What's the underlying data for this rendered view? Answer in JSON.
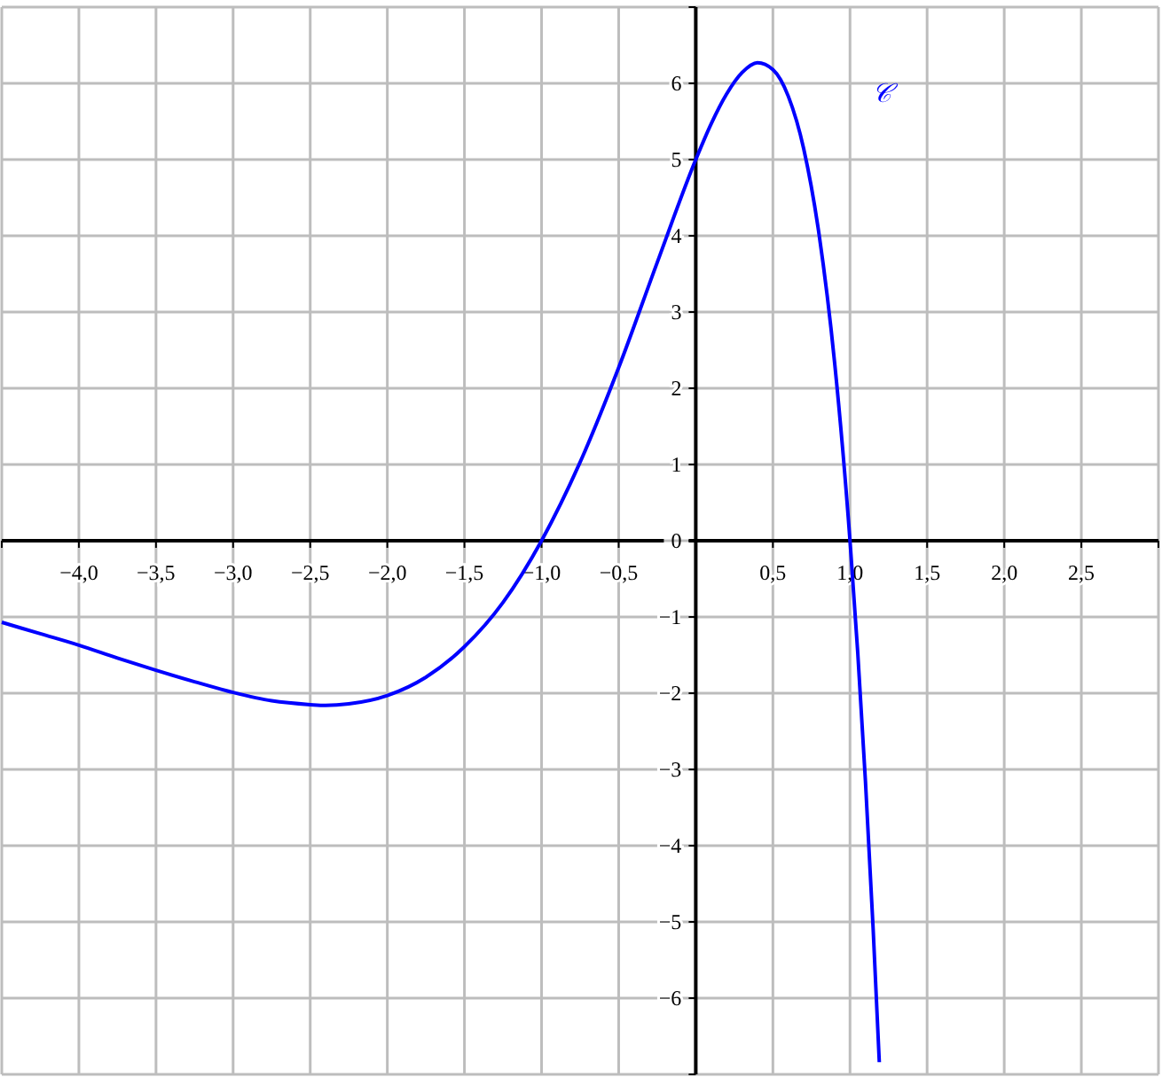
{
  "chart_data": {
    "type": "line",
    "x": [
      -4.5,
      -4.25,
      -4.0,
      -3.75,
      -3.5,
      -3.25,
      -3.0,
      -2.75,
      -2.5,
      -2.4,
      -2.25,
      -2.0,
      -1.75,
      -1.5,
      -1.25,
      -1.0,
      -0.75,
      -0.5,
      -0.25,
      0,
      0.1,
      0.2,
      0.3,
      0.4,
      0.5,
      0.6,
      0.7,
      0.8,
      0.9,
      1.0,
      1.05,
      1.1,
      1.15,
      1.19
    ],
    "series": [
      {
        "name": "𝒞",
        "color": "#0000ff",
        "values": [
          -1.07,
          -1.22,
          -1.37,
          -1.54,
          -1.7,
          -1.85,
          -1.99,
          -2.1,
          -2.15,
          -2.16,
          -2.14,
          -2.03,
          -1.79,
          -1.39,
          -0.81,
          0,
          1.03,
          2.27,
          3.65,
          5,
          5.47,
          5.86,
          6.14,
          6.27,
          6.18,
          5.83,
          5.14,
          4.01,
          2.34,
          0,
          -1.46,
          -3.15,
          -5.09,
          -6.84
        ]
      }
    ],
    "xlim": [
      -4.5,
      3
    ],
    "ylim": [
      -7,
      7
    ],
    "xticks": [
      {
        "value": -4.5,
        "label": null
      },
      {
        "value": -4,
        "label": "−4,0"
      },
      {
        "value": -3.5,
        "label": "−3,5"
      },
      {
        "value": -3,
        "label": "−3,0"
      },
      {
        "value": -2.5,
        "label": "−2,5"
      },
      {
        "value": -2,
        "label": "−2,0"
      },
      {
        "value": -1.5,
        "label": "−1,5"
      },
      {
        "value": -1,
        "label": "−1,0"
      },
      {
        "value": -0.5,
        "label": "−0,5"
      },
      {
        "value": 0,
        "label": null
      },
      {
        "value": 0.5,
        "label": "0,5"
      },
      {
        "value": 1,
        "label": "1,0"
      },
      {
        "value": 1.5,
        "label": "1,5"
      },
      {
        "value": 2,
        "label": "2,0"
      },
      {
        "value": 2.5,
        "label": "2,5"
      },
      {
        "value": 3,
        "label": null
      }
    ],
    "yticks": [
      {
        "value": -7,
        "label": null
      },
      {
        "value": -6,
        "label": "−6"
      },
      {
        "value": -5,
        "label": "−5"
      },
      {
        "value": -4,
        "label": "−4"
      },
      {
        "value": -3,
        "label": "−3"
      },
      {
        "value": -2,
        "label": "−2"
      },
      {
        "value": -1,
        "label": "−1"
      },
      {
        "value": 0,
        "label": "0"
      },
      {
        "value": 1,
        "label": "1"
      },
      {
        "value": 2,
        "label": "2"
      },
      {
        "value": 3,
        "label": "3"
      },
      {
        "value": 4,
        "label": "4"
      },
      {
        "value": 5,
        "label": "5"
      },
      {
        "value": 6,
        "label": "6"
      },
      {
        "value": 7,
        "label": null
      }
    ],
    "grid": true,
    "line_style": "solid"
  }
}
